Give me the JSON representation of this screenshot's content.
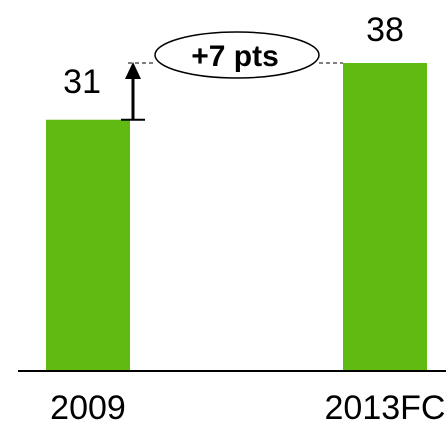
{
  "chart_data": {
    "type": "bar",
    "categories": [
      "2009",
      "2013FC"
    ],
    "values": [
      31,
      38
    ],
    "value_labels": [
      "31",
      "38"
    ],
    "annotation": "+7 pts",
    "colors": {
      "bar": "#5fbb12",
      "axis": "#000000"
    },
    "ylim": [
      0,
      38
    ]
  }
}
